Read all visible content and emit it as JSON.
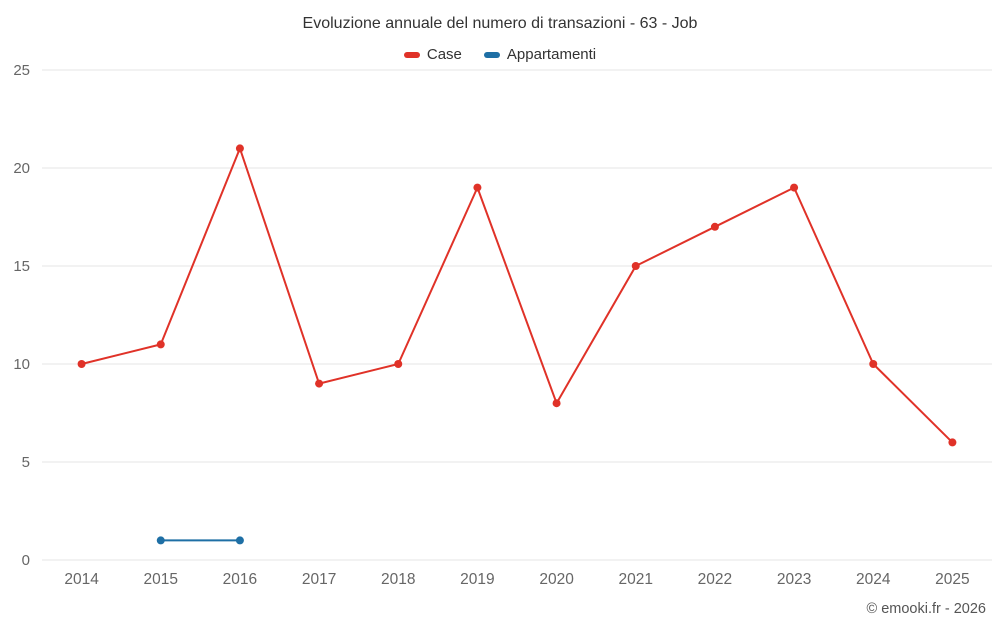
{
  "header": {
    "title": "Evoluzione annuale del numero di transazioni - 63 - Job"
  },
  "legend": {
    "items": [
      {
        "label": "Case",
        "color": "#e03228"
      },
      {
        "label": "Appartamenti",
        "color": "#1e6fa5"
      }
    ]
  },
  "footer": {
    "credit": "© emooki.fr - 2026"
  },
  "colors": {
    "grid": "#e6e6e6",
    "axis_text": "#666666",
    "title_text": "#333333"
  },
  "chart_data": {
    "type": "line",
    "title": "Evoluzione annuale del numero di transazioni - 63 - Job",
    "xlabel": "",
    "ylabel": "",
    "categories": [
      "2014",
      "2015",
      "2016",
      "2017",
      "2018",
      "2019",
      "2020",
      "2021",
      "2022",
      "2023",
      "2024",
      "2025"
    ],
    "ylim": [
      0,
      25
    ],
    "yticks": [
      0,
      5,
      10,
      15,
      20,
      25
    ],
    "grid": true,
    "legend_position": "top",
    "series": [
      {
        "name": "Case",
        "color": "#e03228",
        "x": [
          "2014",
          "2015",
          "2016",
          "2017",
          "2018",
          "2019",
          "2020",
          "2021",
          "2022",
          "2023",
          "2024",
          "2025"
        ],
        "values": [
          10,
          11,
          21,
          9,
          10,
          19,
          8,
          15,
          17,
          19,
          10,
          6
        ]
      },
      {
        "name": "Appartamenti",
        "color": "#1e6fa5",
        "x": [
          "2015",
          "2016"
        ],
        "values": [
          1,
          1
        ]
      }
    ]
  }
}
